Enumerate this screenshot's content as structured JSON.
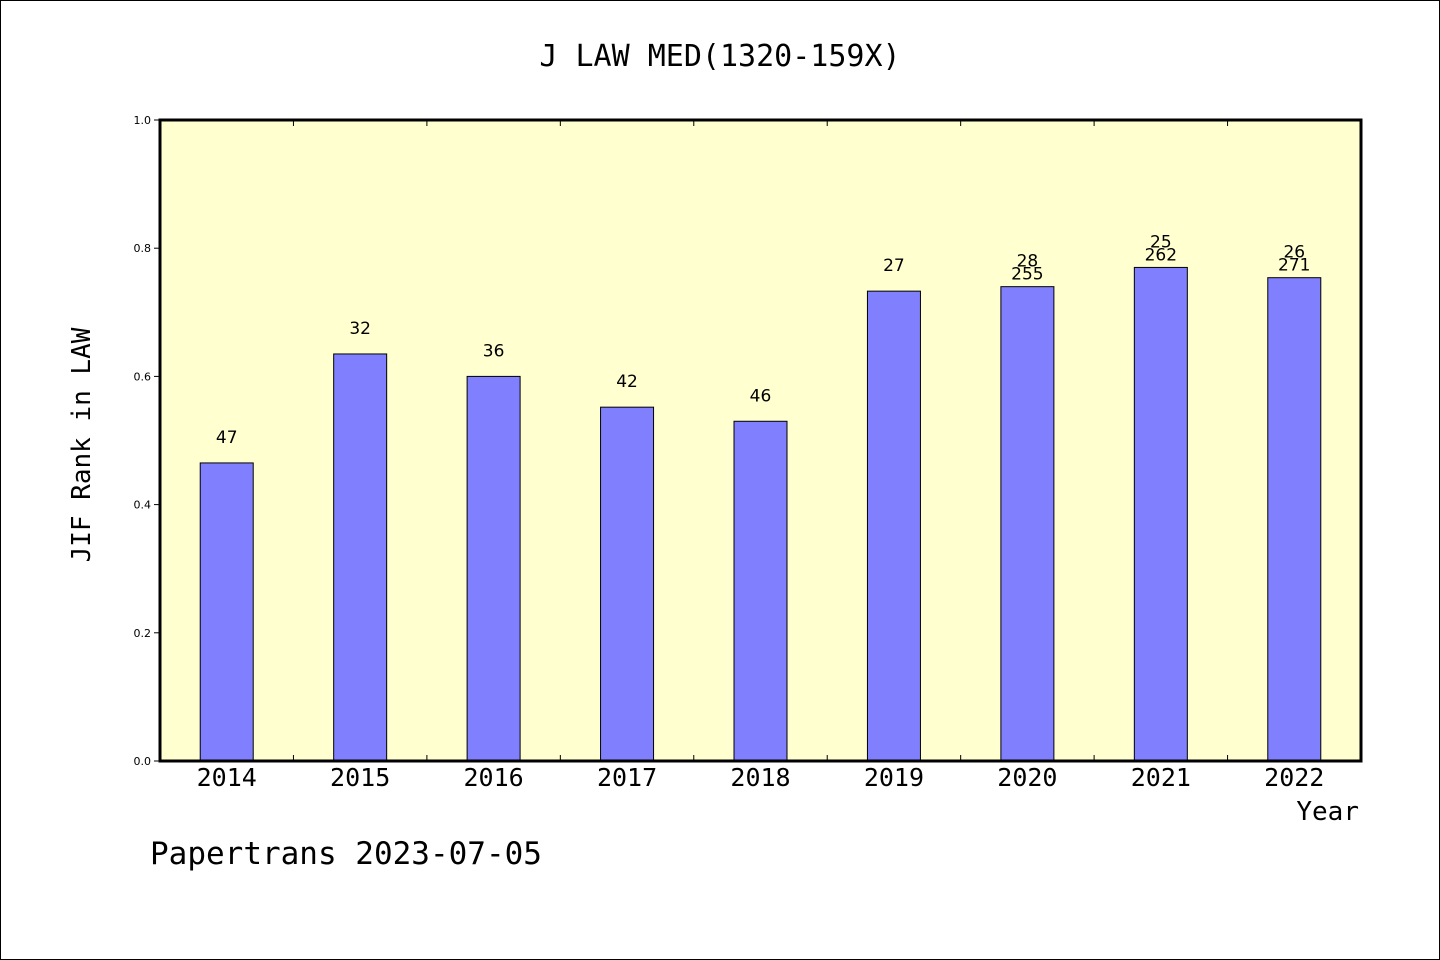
{
  "chart_data": {
    "type": "bar",
    "title": "J LAW MED(1320-159X)",
    "xlabel": "Year",
    "ylabel": "JIF Rank in LAW",
    "ylim": [
      0.0,
      1.0
    ],
    "yticks": [
      "0.0",
      "0.2",
      "0.4",
      "0.6",
      "0.8",
      "1.0"
    ],
    "categories": [
      "2014",
      "2015",
      "2016",
      "2017",
      "2018",
      "2019",
      "2020",
      "2021",
      "2022"
    ],
    "values": [
      0.465,
      0.635,
      0.6,
      0.552,
      0.53,
      0.733,
      0.74,
      0.77,
      0.754
    ],
    "rank_labels": [
      "47",
      "32",
      "36",
      "42",
      "46",
      "27",
      "28",
      "25",
      "26"
    ],
    "total_labels": [
      "",
      "",
      "",
      "",
      "",
      "",
      "255",
      "262",
      "271"
    ],
    "bar_color": "#8080ff",
    "plot_background": "#ffffd0",
    "grid": false
  },
  "footer": {
    "credit": "Papertrans 2023-07-05"
  }
}
